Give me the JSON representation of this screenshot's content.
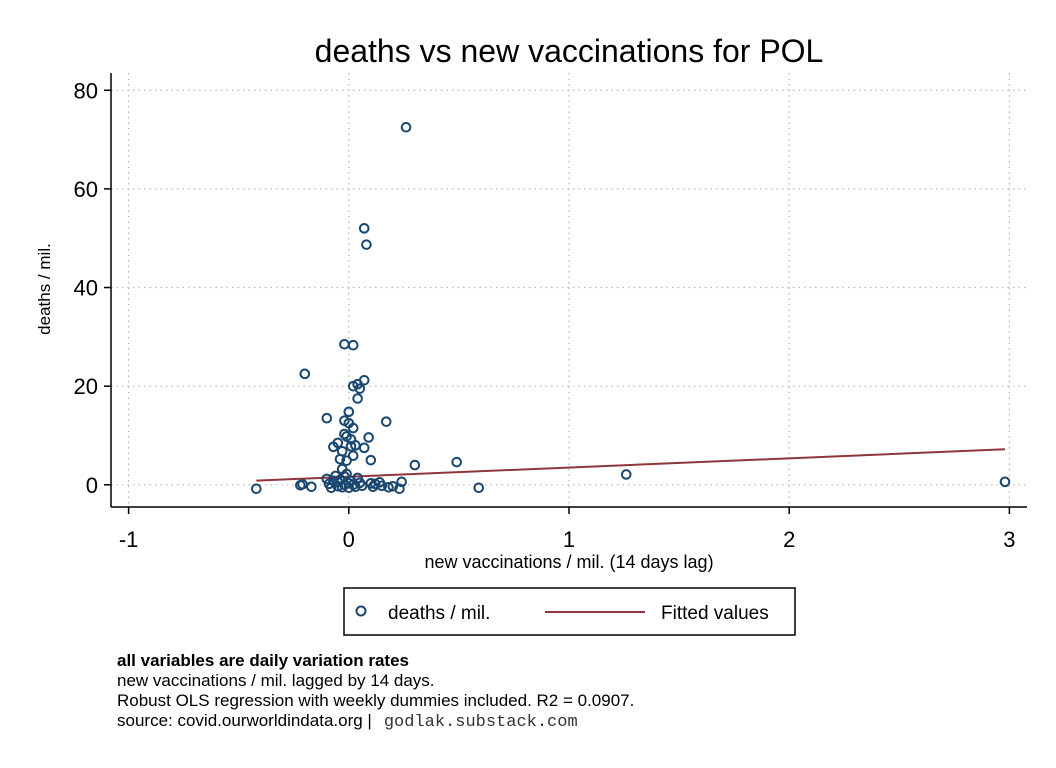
{
  "chart_data": {
    "type": "scatter",
    "title": "deaths vs new vaccinations for POL",
    "xlabel": "new vaccinations / mil. (14 days lag)",
    "ylabel": "deaths / mil.",
    "xlim": [
      -1.08,
      3.08
    ],
    "ylim": [
      -4.5,
      83.5
    ],
    "xticks": [
      -1,
      0,
      1,
      2,
      3
    ],
    "xtick_labels": [
      "-1",
      "0",
      "1",
      "2",
      "3"
    ],
    "yticks": [
      0,
      20,
      40,
      60,
      80
    ],
    "ytick_labels": [
      "0",
      "20",
      "40",
      "60",
      "80"
    ],
    "grid": true,
    "legend_position": "bottom",
    "colors": {
      "scatter": "#1a476f",
      "fit": "#90353b",
      "grid": "#b8b8b8"
    },
    "series": [
      {
        "name": "deaths / mil.",
        "kind": "scatter",
        "points": [
          [
            -0.42,
            -0.8
          ],
          [
            -0.22,
            -0.1
          ],
          [
            -0.21,
            0.1
          ],
          [
            -0.2,
            22.5
          ],
          [
            -0.17,
            -0.4
          ],
          [
            -0.1,
            13.5
          ],
          [
            -0.1,
            1.2
          ],
          [
            -0.09,
            0.2
          ],
          [
            -0.08,
            -0.6
          ],
          [
            -0.07,
            7.7
          ],
          [
            -0.07,
            0.8
          ],
          [
            -0.06,
            1.8
          ],
          [
            -0.05,
            8.5
          ],
          [
            -0.05,
            0.6
          ],
          [
            -0.05,
            -0.3
          ],
          [
            -0.04,
            5.2
          ],
          [
            -0.04,
            1.0
          ],
          [
            -0.03,
            6.8
          ],
          [
            -0.03,
            3.2
          ],
          [
            -0.03,
            -0.5
          ],
          [
            -0.02,
            28.5
          ],
          [
            -0.02,
            13.0
          ],
          [
            -0.02,
            10.3
          ],
          [
            -0.02,
            1.7
          ],
          [
            -0.02,
            0.0
          ],
          [
            -0.01,
            9.8
          ],
          [
            -0.01,
            4.9
          ],
          [
            -0.01,
            2.2
          ],
          [
            0.0,
            12.5
          ],
          [
            0.0,
            14.8
          ],
          [
            0.0,
            0.3
          ],
          [
            0.0,
            -0.6
          ],
          [
            0.01,
            7.8
          ],
          [
            0.01,
            9.2
          ],
          [
            0.01,
            0.8
          ],
          [
            0.02,
            20.0
          ],
          [
            0.02,
            28.3
          ],
          [
            0.02,
            11.5
          ],
          [
            0.02,
            5.9
          ],
          [
            0.02,
            0.0
          ],
          [
            0.03,
            8.0
          ],
          [
            0.03,
            -0.4
          ],
          [
            0.04,
            20.4
          ],
          [
            0.04,
            17.5
          ],
          [
            0.04,
            1.4
          ],
          [
            0.05,
            19.5
          ],
          [
            0.05,
            0.4
          ],
          [
            0.06,
            -0.2
          ],
          [
            0.07,
            52.0
          ],
          [
            0.07,
            21.2
          ],
          [
            0.07,
            7.5
          ],
          [
            0.08,
            48.7
          ],
          [
            0.09,
            9.6
          ],
          [
            0.1,
            5.0
          ],
          [
            0.1,
            0.3
          ],
          [
            0.11,
            -0.4
          ],
          [
            0.12,
            0.2
          ],
          [
            0.14,
            0.5
          ],
          [
            0.15,
            -0.2
          ],
          [
            0.17,
            12.8
          ],
          [
            0.18,
            -0.5
          ],
          [
            0.2,
            -0.3
          ],
          [
            0.23,
            -0.8
          ],
          [
            0.24,
            0.6
          ],
          [
            0.26,
            72.5
          ],
          [
            0.3,
            4.0
          ],
          [
            0.49,
            4.6
          ],
          [
            0.59,
            -0.6
          ],
          [
            1.26,
            2.1
          ],
          [
            2.98,
            0.6
          ]
        ]
      },
      {
        "name": "Fitted values",
        "kind": "line",
        "points": [
          [
            -0.42,
            0.85
          ],
          [
            2.98,
            7.2
          ]
        ]
      }
    ]
  },
  "legend": {
    "scatter_label": "deaths / mil.",
    "line_label": "Fitted values"
  },
  "notes": {
    "line1": "all variables are daily variation rates",
    "line2": "new vaccinations / mil. lagged by 14 days.",
    "line3": "Robust OLS regression with weekly dummies included. R2 = 0.0907.",
    "line4_prefix": "source: covid.ourworldindata.org |",
    "line4_site": "godlak.substack.com"
  }
}
